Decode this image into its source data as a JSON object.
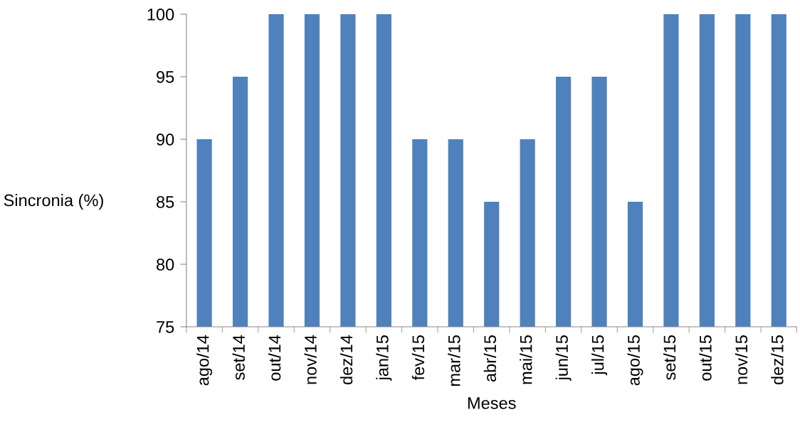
{
  "chart_data": {
    "type": "bar",
    "xlabel": "Meses",
    "ylabel": "Sincronia (%)",
    "categories": [
      "ago/14",
      "set/14",
      "out/14",
      "nov/14",
      "dez/14",
      "jan/15",
      "fev/15",
      "mar/15",
      "abr/15",
      "mai/15",
      "jun/15",
      "jul/15",
      "ago/15",
      "set/15",
      "out/15",
      "nov/15",
      "dez/15"
    ],
    "values": [
      90,
      95,
      100,
      100,
      100,
      100,
      90,
      90,
      85,
      90,
      95,
      95,
      85,
      100,
      100,
      100,
      100
    ],
    "color": "#4f81bd",
    "ylim": [
      75,
      100
    ],
    "yticks": [
      75,
      80,
      85,
      90,
      95,
      100
    ],
    "grid": false,
    "legend": false
  }
}
